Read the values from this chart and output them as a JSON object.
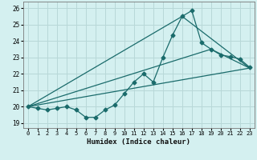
{
  "title": "",
  "xlabel": "Humidex (Indice chaleur)",
  "bg_color": "#d4f0f0",
  "grid_color": "#b8d8d8",
  "line_color": "#1a6b6b",
  "xlim": [
    -0.5,
    23.5
  ],
  "ylim": [
    18.7,
    26.4
  ],
  "yticks": [
    19,
    20,
    21,
    22,
    23,
    24,
    25,
    26
  ],
  "xticks": [
    0,
    1,
    2,
    3,
    4,
    5,
    6,
    7,
    8,
    9,
    10,
    11,
    12,
    13,
    14,
    15,
    16,
    17,
    18,
    19,
    20,
    21,
    22,
    23
  ],
  "series1_x": [
    0,
    1,
    2,
    3,
    4,
    5,
    6,
    7,
    8,
    9,
    10,
    11,
    12,
    13,
    14,
    15,
    16,
    17,
    18,
    19,
    20,
    21,
    22,
    23
  ],
  "series1_y": [
    20.0,
    19.9,
    19.8,
    19.9,
    20.0,
    19.8,
    19.35,
    19.35,
    19.8,
    20.1,
    20.8,
    21.5,
    22.0,
    21.5,
    23.0,
    24.35,
    25.5,
    25.85,
    23.9,
    23.5,
    23.15,
    23.05,
    22.9,
    22.4
  ],
  "series2_x": [
    0,
    23
  ],
  "series2_y": [
    20.0,
    22.35
  ],
  "series3_x": [
    0,
    16,
    23
  ],
  "series3_y": [
    20.0,
    25.5,
    22.35
  ],
  "series4_x": [
    0,
    19,
    23
  ],
  "series4_y": [
    20.0,
    23.5,
    22.35
  ]
}
